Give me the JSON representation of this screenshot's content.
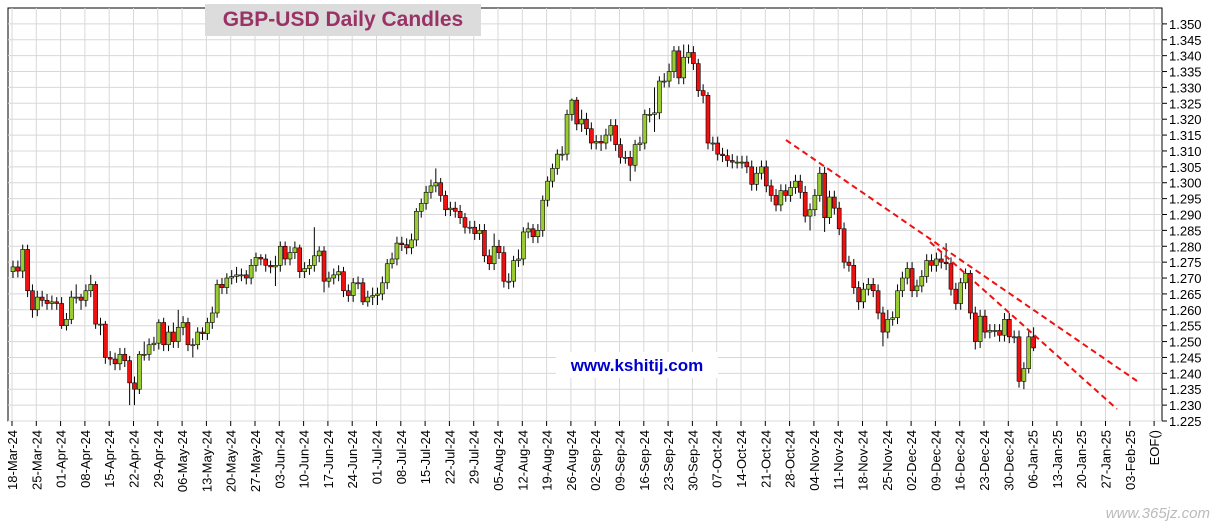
{
  "chart_data": {
    "type": "candlestick",
    "title": "GBP-USD Daily Candles",
    "annotations": [
      "www.kshitij.com"
    ],
    "watermark": "www.365jz.com",
    "categories": [
      "18-Mar-24",
      "25-Mar-24",
      "01-Apr-24",
      "08-Apr-24",
      "15-Apr-24",
      "22-Apr-24",
      "29-Apr-24",
      "06-May-24",
      "13-May-24",
      "20-May-24",
      "27-May-24",
      "03-Jun-24",
      "10-Jun-24",
      "17-Jun-24",
      "24-Jun-24",
      "01-Jul-24",
      "08-Jul-24",
      "15-Jul-24",
      "22-Jul-24",
      "29-Jul-24",
      "05-Aug-24",
      "12-Aug-24",
      "19-Aug-24",
      "26-Aug-24",
      "02-Sep-24",
      "09-Sep-24",
      "16-Sep-24",
      "23-Sep-24",
      "30-Sep-24",
      "07-Oct-24",
      "14-Oct-24",
      "21-Oct-24",
      "28-Oct-24",
      "04-Nov-24",
      "11-Nov-24",
      "18-Nov-24",
      "25-Nov-24",
      "02-Dec-24",
      "09-Dec-24",
      "16-Dec-24",
      "23-Dec-24",
      "30-Dec-24",
      "06-Jan-25",
      "13-Jan-25",
      "20-Jan-25",
      "27-Jan-25",
      "03-Feb-25",
      "EOF()"
    ],
    "up_color": "#99cc33",
    "down_color": "#ee1111",
    "grid": true,
    "ylim": [
      1.225,
      1.355
    ],
    "yticks": [
      {
        "value": 1.225,
        "label": "1.225"
      },
      {
        "value": 1.23,
        "label": "1.230"
      },
      {
        "value": 1.235,
        "label": "1.235"
      },
      {
        "value": 1.24,
        "label": "1.240"
      },
      {
        "value": 1.245,
        "label": "1.245"
      },
      {
        "value": 1.25,
        "label": "1.250"
      },
      {
        "value": 1.255,
        "label": "1.255"
      },
      {
        "value": 1.26,
        "label": "1.260"
      },
      {
        "value": 1.265,
        "label": "1.265"
      },
      {
        "value": 1.27,
        "label": "1.270"
      },
      {
        "value": 1.275,
        "label": "1.275"
      },
      {
        "value": 1.28,
        "label": "1.280"
      },
      {
        "value": 1.285,
        "label": "1.285"
      },
      {
        "value": 1.29,
        "label": "1.290"
      },
      {
        "value": 1.295,
        "label": "1.295"
      },
      {
        "value": 1.3,
        "label": "1.300"
      },
      {
        "value": 1.305,
        "label": "1.305"
      },
      {
        "value": 1.31,
        "label": "1.310"
      },
      {
        "value": 1.315,
        "label": "1.315"
      },
      {
        "value": 1.32,
        "label": "1.320"
      },
      {
        "value": 1.325,
        "label": "1.325"
      },
      {
        "value": 1.33,
        "label": "1.330"
      },
      {
        "value": 1.335,
        "label": "1.335"
      },
      {
        "value": 1.34,
        "label": "1.340"
      },
      {
        "value": 1.345,
        "label": "1.345"
      },
      {
        "value": 1.35,
        "label": "1.350"
      }
    ],
    "open": [
      1.272,
      1.2735,
      1.2722,
      1.279,
      1.266,
      1.26,
      1.264,
      1.263,
      1.262,
      1.2625,
      1.262,
      1.255,
      1.257,
      1.264,
      1.264,
      1.263,
      1.266,
      1.268,
      1.2555,
      1.2555,
      1.245,
      1.2445,
      1.243,
      1.246,
      1.244,
      1.237,
      1.235,
      1.246,
      1.246,
      1.249,
      1.2495,
      1.256,
      1.249,
      1.253,
      1.25,
      1.2545,
      1.256,
      1.249,
      1.249,
      1.253,
      1.2525,
      1.256,
      1.259,
      1.268,
      1.267,
      1.27,
      1.2705,
      1.271,
      1.271,
      1.27,
      1.274,
      1.2765,
      1.276,
      1.274,
      1.2735,
      1.274,
      1.28,
      1.276,
      1.278,
      1.2795,
      1.272,
      1.273,
      1.274,
      1.277,
      1.2785,
      1.269,
      1.27,
      1.271,
      1.272,
      1.266,
      1.2645,
      1.2685,
      1.2685,
      1.2625,
      1.264,
      1.2645,
      1.265,
      1.2685,
      1.2745,
      1.276,
      1.281,
      1.2805,
      1.2795,
      1.282,
      1.291,
      1.2935,
      1.297,
      1.299,
      1.3,
      1.296,
      1.2915,
      1.292,
      1.291,
      1.289,
      1.286,
      1.286,
      1.284,
      1.285,
      1.277,
      1.2745,
      1.28,
      1.278,
      1.269,
      1.269,
      1.2755,
      1.276,
      1.2845,
      1.2855,
      1.283,
      1.285,
      1.2945,
      1.3005,
      1.3045,
      1.309,
      1.309,
      1.3215,
      1.326,
      1.3185,
      1.32,
      1.317,
      1.3125,
      1.313,
      1.3125,
      1.315,
      1.318,
      1.312,
      1.308,
      1.308,
      1.3055,
      1.312,
      1.3125,
      1.3215,
      1.3215,
      1.322,
      1.332,
      1.332,
      1.335,
      1.3415,
      1.333,
      1.3395,
      1.341,
      1.3375,
      1.329,
      1.3275,
      1.3125,
      1.3125,
      1.309,
      1.3085,
      1.307,
      1.3065,
      1.3065,
      1.3065,
      1.305,
      1.2995,
      1.303,
      1.305,
      1.299,
      1.296,
      1.293,
      1.2975,
      1.296,
      1.2985,
      1.3005,
      1.297,
      1.2895,
      1.2915,
      1.296,
      1.303,
      1.289,
      1.2955,
      1.292,
      1.2855,
      1.275,
      1.274,
      1.267,
      1.2625,
      1.2665,
      1.268,
      1.266,
      1.259,
      1.253,
      1.257,
      1.2575,
      1.266,
      1.27,
      1.273,
      1.266,
      1.2675,
      1.2705,
      1.2755,
      1.274,
      1.276,
      1.275,
      1.2745,
      1.2665,
      1.262,
      1.2685,
      1.2715,
      1.259,
      1.25,
      1.258,
      1.253,
      1.2535,
      1.2535,
      1.252,
      1.257,
      1.2515,
      1.2515,
      1.2375,
      1.2415,
      1.2515
    ],
    "high": [
      1.2755,
      1.2755,
      1.2805,
      1.2805,
      1.268,
      1.266,
      1.266,
      1.265,
      1.2645,
      1.264,
      1.264,
      1.259,
      1.266,
      1.268,
      1.265,
      1.268,
      1.271,
      1.269,
      1.2575,
      1.2565,
      1.247,
      1.2465,
      1.248,
      1.248,
      1.2455,
      1.239,
      1.247,
      1.25,
      1.251,
      1.2515,
      1.257,
      1.2575,
      1.255,
      1.256,
      1.26,
      1.258,
      1.2575,
      1.251,
      1.2545,
      1.2545,
      1.2575,
      1.261,
      1.2695,
      1.27,
      1.2715,
      1.2725,
      1.2735,
      1.273,
      1.2725,
      1.276,
      1.278,
      1.2775,
      1.2775,
      1.2755,
      1.277,
      1.2815,
      1.2815,
      1.28,
      1.2815,
      1.2805,
      1.275,
      1.276,
      1.286,
      1.28,
      1.28,
      1.272,
      1.273,
      1.274,
      1.2735,
      1.268,
      1.27,
      1.2705,
      1.27,
      1.266,
      1.267,
      1.267,
      1.2705,
      1.276,
      1.278,
      1.283,
      1.283,
      1.2825,
      1.284,
      1.292,
      1.295,
      1.299,
      1.301,
      1.3045,
      1.3015,
      1.2975,
      1.294,
      1.294,
      1.293,
      1.2905,
      1.288,
      1.288,
      1.287,
      1.287,
      1.279,
      1.284,
      1.282,
      1.28,
      1.2715,
      1.277,
      1.279,
      1.286,
      1.2875,
      1.287,
      1.287,
      1.296,
      1.302,
      1.306,
      1.3105,
      1.3115,
      1.323,
      1.3265,
      1.327,
      1.323,
      1.322,
      1.319,
      1.315,
      1.315,
      1.317,
      1.32,
      1.32,
      1.314,
      1.31,
      1.31,
      1.3135,
      1.3145,
      1.323,
      1.3235,
      1.33,
      1.3335,
      1.3345,
      1.3375,
      1.343,
      1.343,
      1.3435,
      1.3435,
      1.343,
      1.339,
      1.331,
      1.3285,
      1.3145,
      1.3145,
      1.311,
      1.3105,
      1.309,
      1.3085,
      1.3085,
      1.3085,
      1.307,
      1.305,
      1.307,
      1.307,
      1.301,
      1.298,
      1.2995,
      1.2995,
      1.3005,
      1.3025,
      1.3025,
      1.299,
      1.2935,
      1.298,
      1.305,
      1.305,
      1.2975,
      1.2975,
      1.294,
      1.2875,
      1.277,
      1.276,
      1.269,
      1.2685,
      1.27,
      1.27,
      1.268,
      1.261,
      1.26,
      1.2595,
      1.268,
      1.272,
      1.275,
      1.275,
      1.2695,
      1.2725,
      1.2775,
      1.2775,
      1.278,
      1.278,
      1.281,
      1.2765,
      1.2685,
      1.27,
      1.273,
      1.2725,
      1.261,
      1.26,
      1.26,
      1.2555,
      1.2555,
      1.2555,
      1.259,
      1.259,
      1.2535,
      1.2535,
      1.2435,
      1.2535,
      1.2545
    ],
    "low": [
      1.27,
      1.2702,
      1.27,
      1.264,
      1.2575,
      1.258,
      1.261,
      1.26,
      1.26,
      1.26,
      1.254,
      1.2535,
      1.2555,
      1.262,
      1.26,
      1.261,
      1.264,
      1.254,
      1.252,
      1.243,
      1.2425,
      1.241,
      1.241,
      1.242,
      1.23,
      1.23,
      1.2335,
      1.244,
      1.244,
      1.247,
      1.2475,
      1.247,
      1.247,
      1.248,
      1.248,
      1.252,
      1.247,
      1.245,
      1.2475,
      1.2505,
      1.2505,
      1.254,
      1.2575,
      1.265,
      1.265,
      1.268,
      1.2685,
      1.269,
      1.268,
      1.268,
      1.272,
      1.274,
      1.272,
      1.2715,
      1.2675,
      1.272,
      1.274,
      1.274,
      1.276,
      1.27,
      1.27,
      1.271,
      1.272,
      1.275,
      1.2655,
      1.267,
      1.268,
      1.269,
      1.264,
      1.2625,
      1.2625,
      1.2665,
      1.2615,
      1.261,
      1.2615,
      1.2615,
      1.263,
      1.2665,
      1.273,
      1.274,
      1.2785,
      1.2775,
      1.2775,
      1.28,
      1.289,
      1.2915,
      1.295,
      1.297,
      1.294,
      1.2895,
      1.2895,
      1.289,
      1.287,
      1.284,
      1.284,
      1.282,
      1.282,
      1.275,
      1.2725,
      1.2725,
      1.276,
      1.267,
      1.2665,
      1.267,
      1.2735,
      1.274,
      1.2825,
      1.281,
      1.281,
      1.283,
      1.2925,
      1.2985,
      1.3025,
      1.307,
      1.307,
      1.3195,
      1.3165,
      1.316,
      1.315,
      1.3105,
      1.3105,
      1.31,
      1.3105,
      1.313,
      1.31,
      1.306,
      1.306,
      1.3005,
      1.3035,
      1.31,
      1.3105,
      1.319,
      1.316,
      1.32,
      1.33,
      1.33,
      1.333,
      1.331,
      1.331,
      1.3375,
      1.3355,
      1.327,
      1.325,
      1.3105,
      1.31,
      1.307,
      1.3065,
      1.305,
      1.3045,
      1.3045,
      1.3045,
      1.303,
      1.2975,
      1.2975,
      1.301,
      1.297,
      1.294,
      1.291,
      1.291,
      1.294,
      1.294,
      1.2965,
      1.295,
      1.2875,
      1.285,
      1.2895,
      1.294,
      1.2845,
      1.287,
      1.29,
      1.2835,
      1.273,
      1.272,
      1.265,
      1.26,
      1.2605,
      1.2645,
      1.264,
      1.257,
      1.2485,
      1.251,
      1.255,
      1.2555,
      1.264,
      1.268,
      1.264,
      1.264,
      1.2655,
      1.2685,
      1.272,
      1.272,
      1.273,
      1.2725,
      1.2645,
      1.26,
      1.26,
      1.2665,
      1.257,
      1.2475,
      1.248,
      1.251,
      1.251,
      1.2515,
      1.25,
      1.25,
      1.2495,
      1.2495,
      1.2355,
      1.235,
      1.24,
      1.247
    ],
    "close": [
      1.2735,
      1.2722,
      1.279,
      1.266,
      1.26,
      1.264,
      1.263,
      1.262,
      1.2625,
      1.262,
      1.255,
      1.257,
      1.264,
      1.264,
      1.263,
      1.266,
      1.268,
      1.2555,
      1.2555,
      1.245,
      1.2445,
      1.243,
      1.246,
      1.244,
      1.237,
      1.235,
      1.246,
      1.246,
      1.249,
      1.2495,
      1.256,
      1.249,
      1.253,
      1.25,
      1.2545,
      1.256,
      1.249,
      1.249,
      1.253,
      1.2525,
      1.256,
      1.259,
      1.268,
      1.267,
      1.27,
      1.2705,
      1.271,
      1.271,
      1.27,
      1.274,
      1.2765,
      1.276,
      1.274,
      1.2735,
      1.274,
      1.28,
      1.276,
      1.278,
      1.2795,
      1.272,
      1.273,
      1.274,
      1.277,
      1.2785,
      1.269,
      1.27,
      1.271,
      1.272,
      1.266,
      1.2645,
      1.2685,
      1.2685,
      1.2625,
      1.264,
      1.2645,
      1.265,
      1.2685,
      1.2745,
      1.276,
      1.281,
      1.2805,
      1.2795,
      1.282,
      1.291,
      1.2935,
      1.297,
      1.299,
      1.3,
      1.296,
      1.2915,
      1.292,
      1.291,
      1.289,
      1.286,
      1.286,
      1.284,
      1.285,
      1.277,
      1.2745,
      1.28,
      1.278,
      1.269,
      1.269,
      1.2755,
      1.276,
      1.2845,
      1.2855,
      1.283,
      1.285,
      1.2945,
      1.3005,
      1.3045,
      1.309,
      1.309,
      1.3215,
      1.326,
      1.3185,
      1.32,
      1.317,
      1.3125,
      1.313,
      1.3125,
      1.315,
      1.318,
      1.312,
      1.308,
      1.308,
      1.3055,
      1.312,
      1.3125,
      1.3215,
      1.3215,
      1.322,
      1.332,
      1.332,
      1.335,
      1.3415,
      1.333,
      1.3395,
      1.341,
      1.3375,
      1.329,
      1.3275,
      1.3125,
      1.3125,
      1.309,
      1.3085,
      1.307,
      1.3065,
      1.3065,
      1.3065,
      1.305,
      1.2995,
      1.303,
      1.305,
      1.299,
      1.296,
      1.293,
      1.2975,
      1.296,
      1.2985,
      1.3005,
      1.297,
      1.2895,
      1.2915,
      1.296,
      1.303,
      1.289,
      1.2955,
      1.292,
      1.2855,
      1.275,
      1.274,
      1.267,
      1.2625,
      1.2665,
      1.268,
      1.266,
      1.259,
      1.253,
      1.257,
      1.2575,
      1.266,
      1.27,
      1.273,
      1.266,
      1.2675,
      1.2705,
      1.2755,
      1.274,
      1.276,
      1.275,
      1.2745,
      1.2665,
      1.262,
      1.2685,
      1.2715,
      1.259,
      1.25,
      1.258,
      1.253,
      1.2535,
      1.2535,
      1.252,
      1.257,
      1.2515,
      1.2515,
      1.2375,
      1.2415,
      1.2515,
      1.248
    ]
  }
}
